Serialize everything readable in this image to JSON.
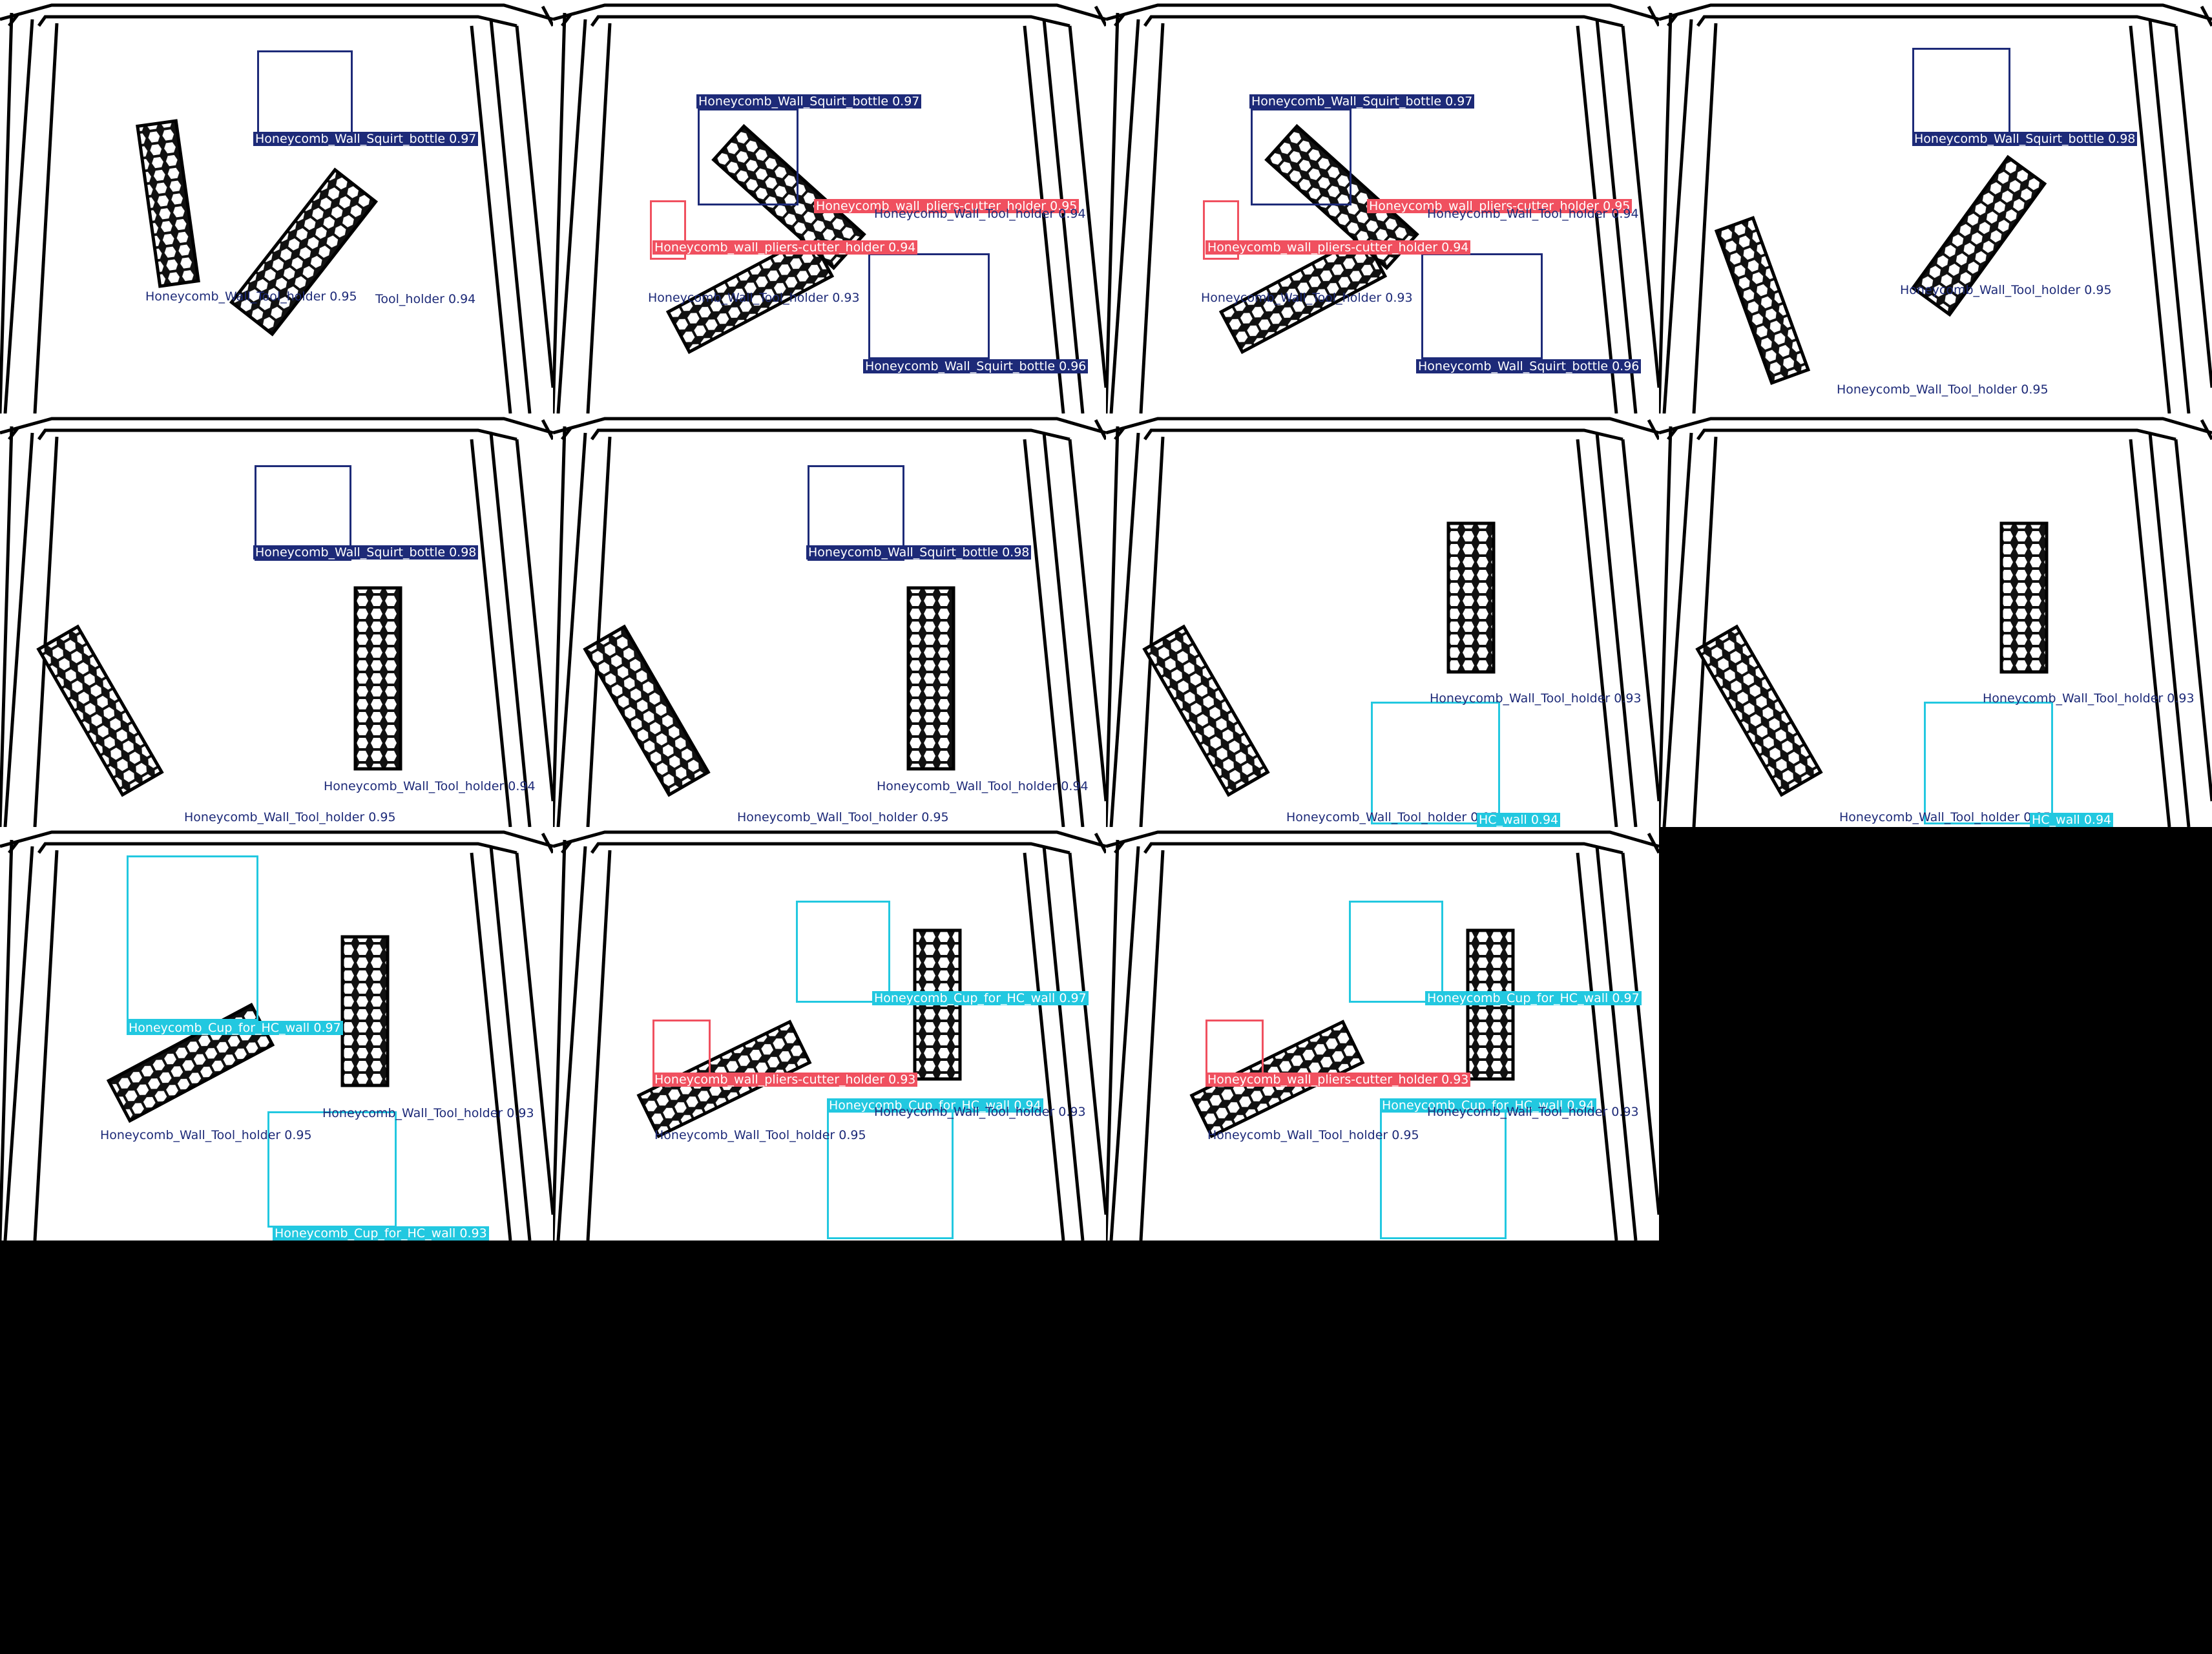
{
  "colors": {
    "squirt_bottle": "#1d2a78",
    "tool_holder": "#1d2a78",
    "pliers_cutter": "#f0505f",
    "cup": "#22c8e0",
    "background": "#000000"
  },
  "tiles": [
    {
      "labels": [
        {
          "text": "Honeycomb_Wall_Squirt_bottle 0.97",
          "cls": "squirt_bottle",
          "style": "filled"
        },
        {
          "text": "Honeycomb_Wall_Tool_holder 0.95",
          "cls": "tool_holder",
          "style": "plain"
        },
        {
          "text": "Tool_holder 0.94",
          "cls": "tool_holder",
          "style": "plain"
        }
      ]
    },
    {
      "labels": [
        {
          "text": "Honeycomb_Wall_Squirt_bottle 0.97",
          "cls": "squirt_bottle",
          "style": "filled"
        },
        {
          "text": "Honeycomb_wall_pliers-cutter_holder 0.95",
          "cls": "pliers_cutter",
          "style": "filled"
        },
        {
          "text": "Honeycomb_Wall_Tool_holder 0.94",
          "cls": "tool_holder",
          "style": "plain"
        },
        {
          "text": "Honeycomb_wall_pliers-cutter_holder 0.94",
          "cls": "pliers_cutter",
          "style": "filled"
        },
        {
          "text": "Honeycomb_Wall_Tool_holder 0.93",
          "cls": "tool_holder",
          "style": "plain"
        },
        {
          "text": "Honeycomb_Wall_Squirt_bottle 0.96",
          "cls": "squirt_bottle",
          "style": "filled"
        }
      ]
    },
    {
      "labels": [
        {
          "text": "Honeycomb_Wall_Squirt_bottle 0.97",
          "cls": "squirt_bottle",
          "style": "filled"
        },
        {
          "text": "Honeycomb_wall_pliers-cutter_holder 0.95",
          "cls": "pliers_cutter",
          "style": "filled"
        },
        {
          "text": "Honeycomb_Wall_Tool_holder 0.94",
          "cls": "tool_holder",
          "style": "plain"
        },
        {
          "text": "Honeycomb_wall_pliers-cutter_holder 0.94",
          "cls": "pliers_cutter",
          "style": "filled"
        },
        {
          "text": "Honeycomb_Wall_Tool_holder 0.93",
          "cls": "tool_holder",
          "style": "plain"
        },
        {
          "text": "Honeycomb_Wall_Squirt_bottle 0.96",
          "cls": "squirt_bottle",
          "style": "filled"
        }
      ]
    },
    {
      "labels": [
        {
          "text": "Honeycomb_Wall_Squirt_bottle 0.98",
          "cls": "squirt_bottle",
          "style": "filled"
        },
        {
          "text": "Honeycomb_Wall_Tool_holder 0.95",
          "cls": "tool_holder",
          "style": "plain"
        },
        {
          "text": "Honeycomb_Wall_Tool_holder 0.95",
          "cls": "tool_holder",
          "style": "plain"
        }
      ]
    },
    {
      "labels": [
        {
          "text": "Honeycomb_Wall_Squirt_bottle 0.98",
          "cls": "squirt_bottle",
          "style": "filled"
        },
        {
          "text": "Honeycomb_Wall_Tool_holder 0.94",
          "cls": "tool_holder",
          "style": "plain"
        },
        {
          "text": "Honeycomb_Wall_Tool_holder 0.95",
          "cls": "tool_holder",
          "style": "plain"
        }
      ]
    },
    {
      "labels": [
        {
          "text": "Honeycomb_Wall_Squirt_bottle 0.98",
          "cls": "squirt_bottle",
          "style": "filled"
        },
        {
          "text": "Honeycomb_Wall_Tool_holder 0.94",
          "cls": "tool_holder",
          "style": "plain"
        },
        {
          "text": "Honeycomb_Wall_Tool_holder 0.95",
          "cls": "tool_holder",
          "style": "plain"
        }
      ]
    },
    {
      "labels": [
        {
          "text": "Honeycomb_Wall_Tool_holder 0.93",
          "cls": "tool_holder",
          "style": "plain"
        },
        {
          "text": "Honeycomb_Wall_Tool_holder 0.95",
          "cls": "tool_holder",
          "style": "plain"
        },
        {
          "text": "HC_wall 0.94",
          "cls": "cup",
          "style": "filled"
        }
      ]
    },
    {
      "labels": [
        {
          "text": "Honeycomb_Wall_Tool_holder 0.93",
          "cls": "tool_holder",
          "style": "plain"
        },
        {
          "text": "Honeycomb_Wall_Tool_holder 0.95",
          "cls": "tool_holder",
          "style": "plain"
        },
        {
          "text": "HC_wall 0.94",
          "cls": "cup",
          "style": "filled"
        }
      ]
    },
    {
      "labels": [
        {
          "text": "Honeycomb_Cup_for_HC_wall 0.97",
          "cls": "cup",
          "style": "filled"
        },
        {
          "text": "Honeycomb_Wall_Tool_holder 0.93",
          "cls": "tool_holder",
          "style": "plain"
        },
        {
          "text": "Honeycomb_Wall_Tool_holder 0.95",
          "cls": "tool_holder",
          "style": "plain"
        },
        {
          "text": "Honeycomb_Cup_for_HC_wall 0.93",
          "cls": "cup",
          "style": "filled"
        }
      ]
    },
    {
      "labels": [
        {
          "text": "Honeycomb_Cup_for_HC_wall 0.97",
          "cls": "cup",
          "style": "filled"
        },
        {
          "text": "Honeycomb_wall_pliers-cutter_holder 0.93",
          "cls": "pliers_cutter",
          "style": "filled"
        },
        {
          "text": "Honeycomb_Cup_for_HC_wall 0.94",
          "cls": "cup",
          "style": "filled"
        },
        {
          "text": "Honeycomb_Wall_Tool_holder 0.93",
          "cls": "tool_holder",
          "style": "plain"
        },
        {
          "text": "Honeycomb_Wall_Tool_holder 0.95",
          "cls": "tool_holder",
          "style": "plain"
        }
      ]
    },
    {
      "labels": [
        {
          "text": "Honeycomb_Cup_for_HC_wall 0.97",
          "cls": "cup",
          "style": "filled"
        },
        {
          "text": "Honeycomb_wall_pliers-cutter_holder 0.93",
          "cls": "pliers_cutter",
          "style": "filled"
        },
        {
          "text": "Honeycomb_Cup_for_HC_wall 0.94",
          "cls": "cup",
          "style": "filled"
        },
        {
          "text": "Honeycomb_Wall_Tool_holder 0.93",
          "cls": "tool_holder",
          "style": "plain"
        },
        {
          "text": "Honeycomb_Wall_Tool_holder 0.95",
          "cls": "tool_holder",
          "style": "plain"
        }
      ]
    }
  ]
}
